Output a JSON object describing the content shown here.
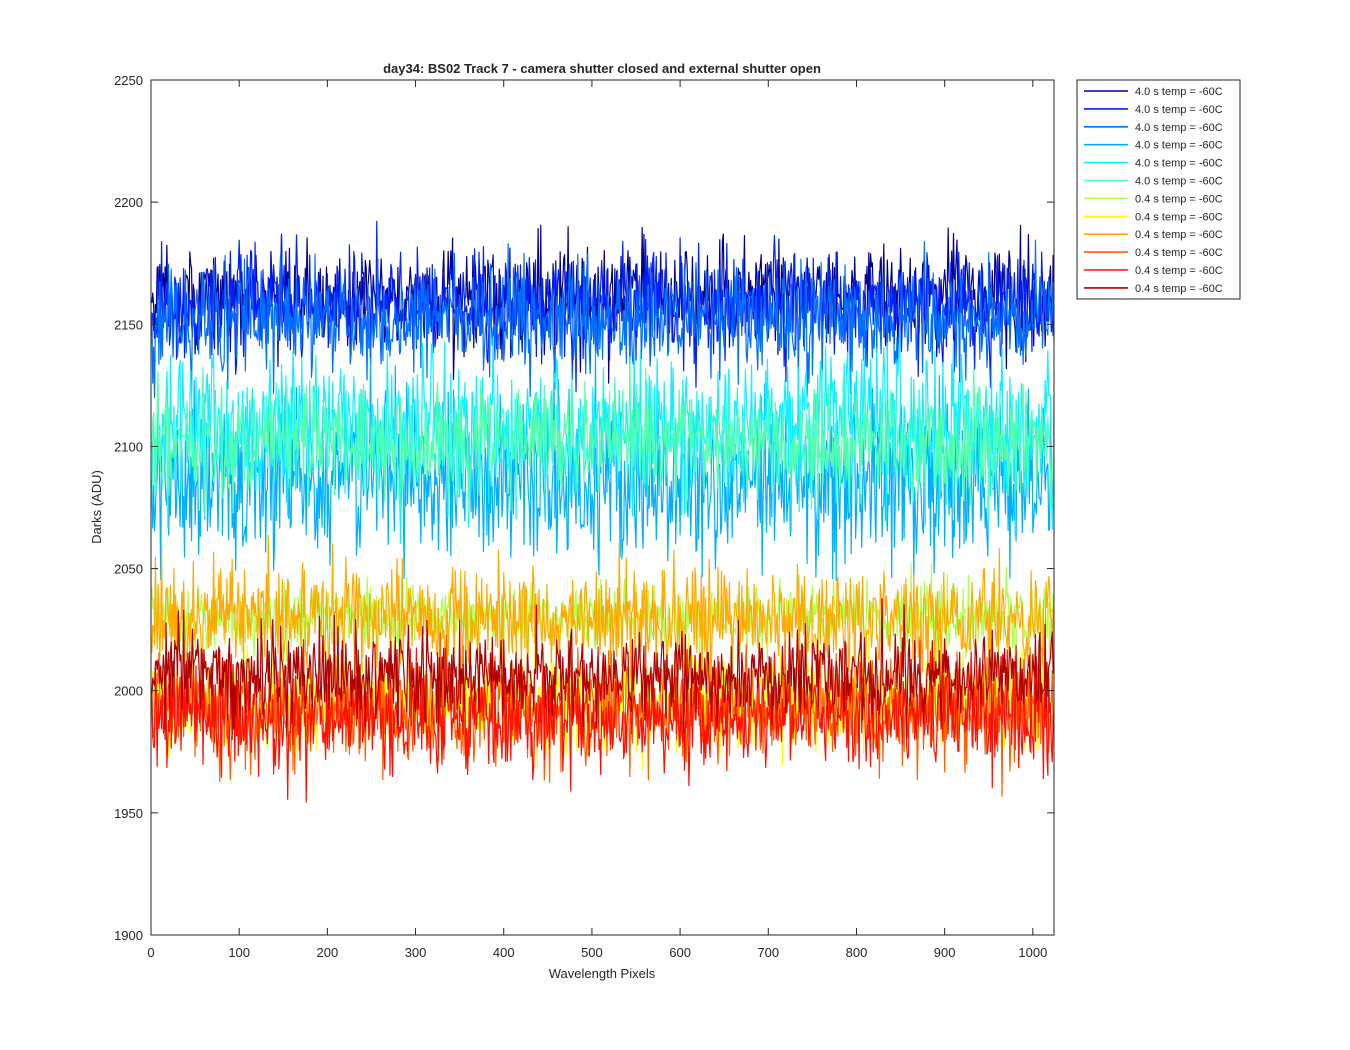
{
  "chart_data": {
    "type": "line",
    "title": "day34: BS02  Track 7 - camera shutter closed and external shutter open",
    "xlabel": "Wavelength Pixels",
    "ylabel": "Darks (ADU)",
    "xlim": [
      0,
      1024
    ],
    "ylim": [
      1900,
      2250
    ],
    "xticks": [
      0,
      100,
      200,
      300,
      400,
      500,
      600,
      700,
      800,
      900,
      1000
    ],
    "yticks": [
      1900,
      1950,
      2000,
      2050,
      2100,
      2150,
      2200,
      2250
    ],
    "grid": false,
    "legend_position": "outside-top-right",
    "series": [
      {
        "name": "4.0 s temp = -60C",
        "color": "#00008f",
        "mean": 2161,
        "noise": 10,
        "min": 2125,
        "max": 2195
      },
      {
        "name": "4.0 s temp = -60C",
        "color": "#0020ff",
        "mean": 2158,
        "noise": 11,
        "min": 2122,
        "max": 2205
      },
      {
        "name": "4.0 s temp = -60C",
        "color": "#0070ff",
        "mean": 2152,
        "noise": 11,
        "min": 2120,
        "max": 2188
      },
      {
        "name": "4.0 s temp = -60C",
        "color": "#00b0ff",
        "mean": 2086,
        "noise": 16,
        "min": 2045,
        "max": 2140
      },
      {
        "name": "4.0 s temp = -60C",
        "color": "#10f0ff",
        "mean": 2108,
        "noise": 15,
        "min": 2060,
        "max": 2150
      },
      {
        "name": "4.0 s temp = -60C",
        "color": "#50ffb0",
        "mean": 2102,
        "noise": 12,
        "min": 2065,
        "max": 2140
      },
      {
        "name": "0.4 s temp = -60C",
        "color": "#b0ff50",
        "mean": 2030,
        "noise": 7,
        "min": 2010,
        "max": 2060
      },
      {
        "name": "0.4 s temp = -60C",
        "color": "#ffff00",
        "mean": 1996,
        "noise": 9,
        "min": 1960,
        "max": 2030
      },
      {
        "name": "0.4 s temp = -60C",
        "color": "#ffaa00",
        "mean": 2030,
        "noise": 11,
        "min": 1995,
        "max": 2080
      },
      {
        "name": "0.4 s temp = -60C",
        "color": "#ff6000",
        "mean": 1992,
        "noise": 11,
        "min": 1945,
        "max": 2030
      },
      {
        "name": "0.4 s temp = -60C",
        "color": "#ff1000",
        "mean": 1990,
        "noise": 11,
        "min": 1930,
        "max": 2025
      },
      {
        "name": "0.4 s temp = -60C",
        "color": "#b00000",
        "mean": 2007,
        "noise": 9,
        "min": 1980,
        "max": 2040
      }
    ]
  }
}
